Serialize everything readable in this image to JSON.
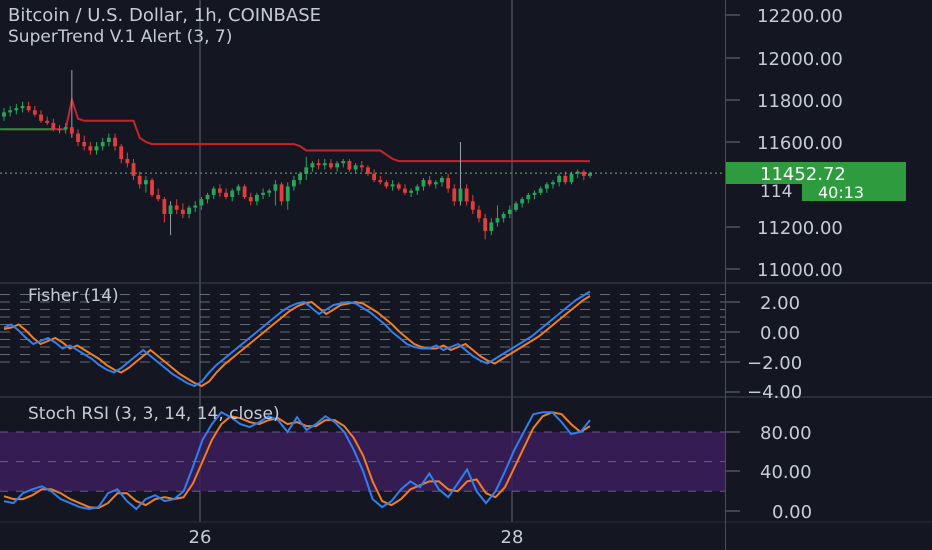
{
  "header": {
    "title": "Bitcoin / U.S. Dollar, 1h, COINBASE",
    "indicator": "SuperTrend V.1 Alert (3, 7)"
  },
  "price_pane": {
    "axis_ticks": [
      "12200.00",
      "12000.00",
      "11800.00",
      "11600.00",
      "11200.00",
      "11000.00"
    ],
    "partial_tick": "114",
    "last_price": "11452.72",
    "countdown": "40:13",
    "colors": {
      "price_badge": "#2e9b3f",
      "supertrend": "#c8232c",
      "up": "#26a65b",
      "down": "#e53b3b"
    }
  },
  "fisher_pane": {
    "label": "Fisher (14)",
    "axis_ticks": [
      "2.00",
      "0.00",
      "−2.00",
      "−4.00"
    ],
    "colors": {
      "fisher": "#2f7ff0",
      "trigger": "#f07d24"
    }
  },
  "stoch_pane": {
    "label": "Stoch RSI (3, 3, 14, 14, close)",
    "axis_ticks": [
      "80.00",
      "40.00",
      "0.00"
    ],
    "colors": {
      "band": "#3b1f5c",
      "k": "#2f7ff0",
      "d": "#f07d24"
    }
  },
  "time_axis": {
    "labels": [
      "26",
      "28"
    ]
  },
  "chart_data": {
    "type": "candlestick",
    "symbol": "BTC/USD",
    "interval": "1h",
    "price_ylim": [
      10950,
      12300
    ],
    "last_price": 11452.72,
    "candles": [
      {
        "o": 11720,
        "h": 11760,
        "l": 11700,
        "c": 11740
      },
      {
        "o": 11740,
        "h": 11770,
        "l": 11720,
        "c": 11750
      },
      {
        "o": 11750,
        "h": 11780,
        "l": 11730,
        "c": 11760
      },
      {
        "o": 11760,
        "h": 11790,
        "l": 11740,
        "c": 11770
      },
      {
        "o": 11770,
        "h": 11790,
        "l": 11740,
        "c": 11750
      },
      {
        "o": 11750,
        "h": 11770,
        "l": 11720,
        "c": 11730
      },
      {
        "o": 11730,
        "h": 11750,
        "l": 11690,
        "c": 11700
      },
      {
        "o": 11700,
        "h": 11720,
        "l": 11680,
        "c": 11690
      },
      {
        "o": 11690,
        "h": 11710,
        "l": 11650,
        "c": 11660
      },
      {
        "o": 11660,
        "h": 11680,
        "l": 11640,
        "c": 11660
      },
      {
        "o": 11660,
        "h": 11690,
        "l": 11640,
        "c": 11670
      },
      {
        "o": 11670,
        "h": 11940,
        "l": 11620,
        "c": 11640
      },
      {
        "o": 11640,
        "h": 11660,
        "l": 11580,
        "c": 11600
      },
      {
        "o": 11600,
        "h": 11630,
        "l": 11560,
        "c": 11580
      },
      {
        "o": 11580,
        "h": 11600,
        "l": 11540,
        "c": 11560
      },
      {
        "o": 11560,
        "h": 11600,
        "l": 11540,
        "c": 11580
      },
      {
        "o": 11580,
        "h": 11620,
        "l": 11560,
        "c": 11600
      },
      {
        "o": 11600,
        "h": 11640,
        "l": 11580,
        "c": 11620
      },
      {
        "o": 11620,
        "h": 11640,
        "l": 11560,
        "c": 11580
      },
      {
        "o": 11580,
        "h": 11590,
        "l": 11500,
        "c": 11520
      },
      {
        "o": 11520,
        "h": 11550,
        "l": 11480,
        "c": 11500
      },
      {
        "o": 11500,
        "h": 11520,
        "l": 11420,
        "c": 11440
      },
      {
        "o": 11440,
        "h": 11460,
        "l": 11380,
        "c": 11400
      },
      {
        "o": 11400,
        "h": 11440,
        "l": 11360,
        "c": 11420
      },
      {
        "o": 11420,
        "h": 11430,
        "l": 11340,
        "c": 11350
      },
      {
        "o": 11350,
        "h": 11380,
        "l": 11320,
        "c": 11330
      },
      {
        "o": 11330,
        "h": 11340,
        "l": 11220,
        "c": 11260
      },
      {
        "o": 11260,
        "h": 11320,
        "l": 11160,
        "c": 11300
      },
      {
        "o": 11300,
        "h": 11330,
        "l": 11260,
        "c": 11280
      },
      {
        "o": 11280,
        "h": 11310,
        "l": 11240,
        "c": 11260
      },
      {
        "o": 11260,
        "h": 11300,
        "l": 11240,
        "c": 11290
      },
      {
        "o": 11290,
        "h": 11320,
        "l": 11270,
        "c": 11300
      },
      {
        "o": 11300,
        "h": 11340,
        "l": 11280,
        "c": 11330
      },
      {
        "o": 11330,
        "h": 11360,
        "l": 11310,
        "c": 11350
      },
      {
        "o": 11350,
        "h": 11390,
        "l": 11330,
        "c": 11380
      },
      {
        "o": 11380,
        "h": 11400,
        "l": 11340,
        "c": 11360
      },
      {
        "o": 11360,
        "h": 11380,
        "l": 11330,
        "c": 11340
      },
      {
        "o": 11340,
        "h": 11380,
        "l": 11320,
        "c": 11370
      },
      {
        "o": 11370,
        "h": 11400,
        "l": 11350,
        "c": 11390
      },
      {
        "o": 11390,
        "h": 11400,
        "l": 11330,
        "c": 11340
      },
      {
        "o": 11340,
        "h": 11360,
        "l": 11300,
        "c": 11320
      },
      {
        "o": 11320,
        "h": 11360,
        "l": 11300,
        "c": 11350
      },
      {
        "o": 11350,
        "h": 11380,
        "l": 11330,
        "c": 11360
      },
      {
        "o": 11360,
        "h": 11380,
        "l": 11340,
        "c": 11370
      },
      {
        "o": 11370,
        "h": 11420,
        "l": 11300,
        "c": 11400
      },
      {
        "o": 11400,
        "h": 11410,
        "l": 11300,
        "c": 11320
      },
      {
        "o": 11320,
        "h": 11410,
        "l": 11280,
        "c": 11390
      },
      {
        "o": 11390,
        "h": 11440,
        "l": 11370,
        "c": 11420
      },
      {
        "o": 11420,
        "h": 11460,
        "l": 11400,
        "c": 11450
      },
      {
        "o": 11450,
        "h": 11530,
        "l": 11420,
        "c": 11480
      },
      {
        "o": 11480,
        "h": 11510,
        "l": 11460,
        "c": 11500
      },
      {
        "o": 11500,
        "h": 11520,
        "l": 11470,
        "c": 11490
      },
      {
        "o": 11490,
        "h": 11520,
        "l": 11470,
        "c": 11500
      },
      {
        "o": 11500,
        "h": 11520,
        "l": 11470,
        "c": 11480
      },
      {
        "o": 11480,
        "h": 11510,
        "l": 11460,
        "c": 11500
      },
      {
        "o": 11500,
        "h": 11520,
        "l": 11480,
        "c": 11510
      },
      {
        "o": 11510,
        "h": 11520,
        "l": 11460,
        "c": 11470
      },
      {
        "o": 11470,
        "h": 11500,
        "l": 11450,
        "c": 11490
      },
      {
        "o": 11490,
        "h": 11510,
        "l": 11460,
        "c": 11480
      },
      {
        "o": 11480,
        "h": 11490,
        "l": 11440,
        "c": 11450
      },
      {
        "o": 11450,
        "h": 11470,
        "l": 11410,
        "c": 11420
      },
      {
        "o": 11420,
        "h": 11440,
        "l": 11400,
        "c": 11410
      },
      {
        "o": 11410,
        "h": 11420,
        "l": 11380,
        "c": 11390
      },
      {
        "o": 11390,
        "h": 11420,
        "l": 11370,
        "c": 11400
      },
      {
        "o": 11400,
        "h": 11410,
        "l": 11370,
        "c": 11380
      },
      {
        "o": 11380,
        "h": 11400,
        "l": 11350,
        "c": 11360
      },
      {
        "o": 11360,
        "h": 11380,
        "l": 11340,
        "c": 11370
      },
      {
        "o": 11370,
        "h": 11400,
        "l": 11350,
        "c": 11390
      },
      {
        "o": 11390,
        "h": 11430,
        "l": 11370,
        "c": 11420
      },
      {
        "o": 11420,
        "h": 11440,
        "l": 11390,
        "c": 11400
      },
      {
        "o": 11400,
        "h": 11420,
        "l": 11380,
        "c": 11410
      },
      {
        "o": 11410,
        "h": 11440,
        "l": 11390,
        "c": 11430
      },
      {
        "o": 11430,
        "h": 11450,
        "l": 11360,
        "c": 11380
      },
      {
        "o": 11380,
        "h": 11400,
        "l": 11300,
        "c": 11320
      },
      {
        "o": 11320,
        "h": 11600,
        "l": 11300,
        "c": 11380
      },
      {
        "o": 11380,
        "h": 11400,
        "l": 11300,
        "c": 11320
      },
      {
        "o": 11320,
        "h": 11350,
        "l": 11260,
        "c": 11280
      },
      {
        "o": 11280,
        "h": 11300,
        "l": 11220,
        "c": 11240
      },
      {
        "o": 11240,
        "h": 11260,
        "l": 11140,
        "c": 11180
      },
      {
        "o": 11180,
        "h": 11240,
        "l": 11160,
        "c": 11220
      },
      {
        "o": 11220,
        "h": 11300,
        "l": 11200,
        "c": 11240
      },
      {
        "o": 11240,
        "h": 11270,
        "l": 11220,
        "c": 11260
      },
      {
        "o": 11260,
        "h": 11300,
        "l": 11240,
        "c": 11280
      },
      {
        "o": 11280,
        "h": 11320,
        "l": 11270,
        "c": 11310
      },
      {
        "o": 11310,
        "h": 11340,
        "l": 11290,
        "c": 11330
      },
      {
        "o": 11330,
        "h": 11360,
        "l": 11310,
        "c": 11350
      },
      {
        "o": 11350,
        "h": 11370,
        "l": 11330,
        "c": 11360
      },
      {
        "o": 11360,
        "h": 11390,
        "l": 11350,
        "c": 11380
      },
      {
        "o": 11380,
        "h": 11410,
        "l": 11360,
        "c": 11400
      },
      {
        "o": 11400,
        "h": 11420,
        "l": 11380,
        "c": 11410
      },
      {
        "o": 11410,
        "h": 11450,
        "l": 11390,
        "c": 11440
      },
      {
        "o": 11440,
        "h": 11460,
        "l": 11400,
        "c": 11410
      },
      {
        "o": 11410,
        "h": 11460,
        "l": 11400,
        "c": 11450
      },
      {
        "o": 11450,
        "h": 11470,
        "l": 11430,
        "c": 11460
      },
      {
        "o": 11460,
        "h": 11470,
        "l": 11420,
        "c": 11440
      },
      {
        "o": 11440,
        "h": 11460,
        "l": 11430,
        "c": 11452
      }
    ],
    "supertrend": [
      11660,
      11660,
      11660,
      11660,
      11660,
      11660,
      11660,
      11660,
      11660,
      11660,
      11660,
      11800,
      11710,
      11700,
      11700,
      11700,
      11700,
      11700,
      11700,
      11700,
      11700,
      11700,
      11620,
      11600,
      11590,
      11590,
      11590,
      11590,
      11590,
      11590,
      11590,
      11590,
      11590,
      11590,
      11590,
      11590,
      11590,
      11590,
      11590,
      11590,
      11590,
      11590,
      11590,
      11590,
      11590,
      11590,
      11590,
      11590,
      11580,
      11560,
      11560,
      11560,
      11560,
      11560,
      11560,
      11560,
      11560,
      11560,
      11560,
      11560,
      11560,
      11560,
      11540,
      11520,
      11510,
      11510,
      11510,
      11510,
      11510,
      11510,
      11510,
      11510,
      11510,
      11510,
      11510,
      11510,
      11510,
      11510,
      11510,
      11510,
      11510,
      11510,
      11510,
      11510,
      11510,
      11510,
      11510,
      11510,
      11510,
      11510,
      11510,
      11510,
      11510,
      11510,
      11510,
      11510
    ],
    "fisher": {
      "ylim": [
        -4.3,
        3.0
      ],
      "fisher": [
        0.3,
        0.5,
        0.1,
        -0.4,
        -0.8,
        -0.6,
        -0.4,
        -0.7,
        -1.1,
        -0.9,
        -1.2,
        -1.5,
        -1.8,
        -2.2,
        -2.5,
        -2.7,
        -2.4,
        -2.0,
        -1.6,
        -1.2,
        -1.6,
        -2.0,
        -2.4,
        -2.8,
        -3.1,
        -3.4,
        -3.6,
        -3.3,
        -2.7,
        -2.2,
        -1.8,
        -1.4,
        -1.0,
        -0.6,
        -0.2,
        0.2,
        0.6,
        1.0,
        1.4,
        1.7,
        1.9,
        2.0,
        1.6,
        1.2,
        1.5,
        1.8,
        1.9,
        2.0,
        1.9,
        1.6,
        1.3,
        0.9,
        0.5,
        0.0,
        -0.4,
        -0.8,
        -1.0,
        -1.1,
        -1.1,
        -0.9,
        -1.2,
        -1.0,
        -0.8,
        -1.2,
        -1.6,
        -1.9,
        -2.1,
        -1.8,
        -1.5,
        -1.2,
        -0.9,
        -0.6,
        -0.3,
        0.1,
        0.5,
        0.9,
        1.3,
        1.7,
        2.1,
        2.4,
        2.7
      ],
      "trigger": [
        0.2,
        0.3,
        0.5,
        0.1,
        -0.4,
        -0.8,
        -0.6,
        -0.4,
        -0.7,
        -1.1,
        -0.9,
        -1.2,
        -1.5,
        -1.8,
        -2.2,
        -2.5,
        -2.7,
        -2.4,
        -2.0,
        -1.6,
        -1.2,
        -1.6,
        -2.0,
        -2.4,
        -2.8,
        -3.1,
        -3.4,
        -3.6,
        -3.3,
        -2.7,
        -2.2,
        -1.8,
        -1.4,
        -1.0,
        -0.6,
        -0.2,
        0.2,
        0.6,
        1.0,
        1.4,
        1.7,
        1.9,
        2.0,
        1.6,
        1.2,
        1.5,
        1.8,
        1.9,
        2.0,
        1.9,
        1.6,
        1.3,
        0.9,
        0.5,
        0.0,
        -0.4,
        -0.8,
        -1.0,
        -1.1,
        -1.1,
        -0.9,
        -1.2,
        -1.0,
        -0.8,
        -1.2,
        -1.6,
        -1.9,
        -2.1,
        -1.8,
        -1.5,
        -1.2,
        -0.9,
        -0.6,
        -0.3,
        0.1,
        0.5,
        0.9,
        1.3,
        1.7,
        2.1,
        2.4
      ]
    },
    "stoch_rsi": {
      "ylim": [
        -8,
        108
      ],
      "band": [
        20,
        80
      ],
      "k": [
        10,
        8,
        18,
        22,
        25,
        20,
        12,
        8,
        4,
        2,
        4,
        18,
        22,
        10,
        2,
        12,
        16,
        10,
        12,
        20,
        45,
        72,
        88,
        100,
        95,
        88,
        85,
        90,
        96,
        92,
        80,
        95,
        82,
        88,
        96,
        90,
        80,
        62,
        40,
        12,
        4,
        10,
        22,
        30,
        24,
        38,
        22,
        14,
        28,
        42,
        20,
        8,
        20,
        40,
        62,
        80,
        98,
        100,
        100,
        90,
        78,
        80,
        92
      ],
      "d": [
        15,
        12,
        12,
        16,
        22,
        22,
        18,
        12,
        8,
        4,
        3,
        8,
        18,
        18,
        10,
        6,
        12,
        14,
        12,
        14,
        28,
        50,
        72,
        88,
        96,
        94,
        90,
        88,
        92,
        94,
        88,
        90,
        86,
        86,
        92,
        92,
        86,
        74,
        56,
        30,
        10,
        6,
        12,
        22,
        26,
        30,
        30,
        22,
        20,
        30,
        32,
        18,
        14,
        24,
        44,
        64,
        84,
        96,
        100,
        98,
        88,
        80,
        86
      ]
    }
  }
}
